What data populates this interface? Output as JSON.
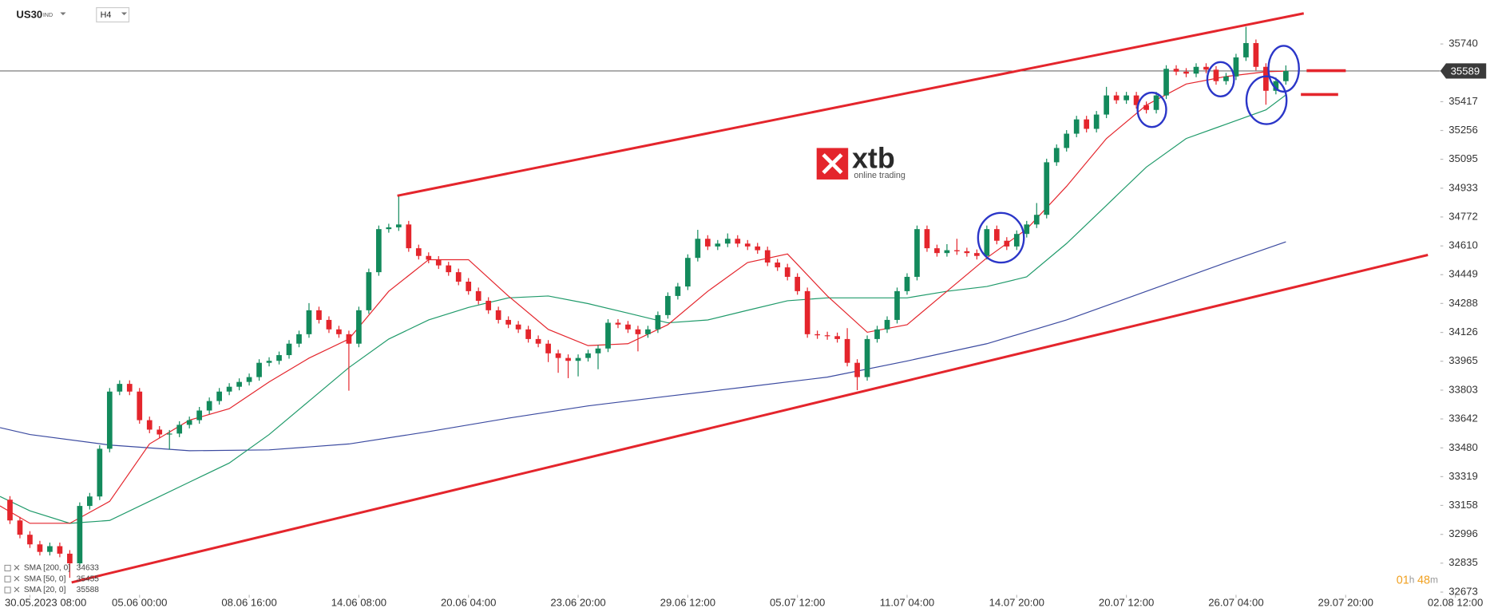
{
  "ticker": "US30",
  "ticker_tag": "IND",
  "timeframe": "H4",
  "logo": {
    "brand": "xtb",
    "tagline": "online trading"
  },
  "timer": [
    "01",
    "h",
    "48",
    "m"
  ],
  "chart_data": {
    "type": "candlestick",
    "up_color": "#138a5c",
    "down_color": "#e4252c",
    "xlim": [
      -3,
      146
    ],
    "ylim": [
      32567,
      35986
    ],
    "xticks": [
      {
        "value": 0,
        "label": "30.05.2023  08:00"
      },
      {
        "value": 11,
        "label": "05.06 00:00"
      },
      {
        "value": 22,
        "label": "08.06 16:00"
      },
      {
        "value": 33,
        "label": "14.06 08:00"
      },
      {
        "value": 44,
        "label": "20.06 04:00"
      },
      {
        "value": 55,
        "label": "23.06 20:00"
      },
      {
        "value": 66,
        "label": "29.06 12:00"
      },
      {
        "value": 77,
        "label": "05.07 12:00"
      },
      {
        "value": 88,
        "label": "11.07 04:00"
      },
      {
        "value": 99,
        "label": "14.07 20:00"
      },
      {
        "value": 110,
        "label": "20.07 12:00"
      },
      {
        "value": 121,
        "label": "26.07 04:00"
      },
      {
        "value": 132,
        "label": "29.07 20:00"
      },
      {
        "value": 143,
        "label": "02.08 12:00"
      }
    ],
    "yticks": [
      35740,
      35417,
      35256,
      35095,
      34933,
      34772,
      34610,
      34449,
      34288,
      34126,
      33965,
      33803,
      33642,
      33480,
      33319,
      33158,
      32996,
      32835,
      32673
    ],
    "current_price": 35589,
    "x": [
      -2,
      -1,
      0,
      1,
      2,
      3,
      4,
      5,
      6,
      7,
      8,
      9,
      10,
      11,
      12,
      13,
      14,
      15,
      16,
      17,
      18,
      19,
      20,
      21,
      22,
      23,
      24,
      25,
      26,
      27,
      28,
      29,
      30,
      31,
      32,
      33,
      34,
      35,
      36,
      37,
      38,
      39,
      40,
      41,
      42,
      43,
      44,
      45,
      46,
      47,
      48,
      49,
      50,
      51,
      52,
      53,
      54,
      55,
      56,
      57,
      58,
      59,
      60,
      61,
      62,
      63,
      64,
      65,
      66,
      67,
      68,
      69,
      70,
      71,
      72,
      73,
      74,
      75,
      76,
      77,
      78,
      79,
      80,
      81,
      82,
      83,
      84,
      85,
      86,
      87,
      88,
      89,
      90,
      91,
      92,
      93,
      94,
      95,
      96,
      97,
      98,
      99,
      100,
      101,
      102,
      103,
      104,
      105,
      106,
      107,
      108,
      109,
      110,
      111,
      112,
      113,
      114,
      115,
      116,
      117,
      118,
      119,
      120,
      121,
      122,
      123,
      124,
      125,
      126
    ],
    "open": [
      33190,
      33074,
      32994,
      32940,
      32898,
      32930,
      32888,
      32834,
      33155,
      33208,
      33475,
      33795,
      33838,
      33795,
      33635,
      33582,
      33555,
      33560,
      33609,
      33635,
      33689,
      33742,
      33795,
      33822,
      33849,
      33876,
      33956,
      33967,
      33999,
      34063,
      34116,
      34250,
      34196,
      34143,
      34116,
      34063,
      34250,
      34463,
      34704,
      34714,
      34730,
      34597,
      34554,
      34533,
      34501,
      34463,
      34410,
      34357,
      34303,
      34250,
      34196,
      34170,
      34143,
      34089,
      34063,
      34009,
      33983,
      33967,
      33983,
      34009,
      34036,
      34180,
      34170,
      34143,
      34116,
      34143,
      34223,
      34330,
      34383,
      34543,
      34650,
      34607,
      34623,
      34650,
      34623,
      34607,
      34586,
      34517,
      34490,
      34437,
      34357,
      34116,
      34110,
      34105,
      34089,
      33956,
      33876,
      34089,
      34143,
      34196,
      34357,
      34437,
      34704,
      34597,
      34570,
      34586,
      34580,
      34570,
      34554,
      34704,
      34639,
      34607,
      34677,
      34730,
      34784,
      35078,
      35158,
      35238,
      35318,
      35265,
      35345,
      35452,
      35425,
      35452,
      35398,
      35371,
      35452,
      35601,
      35585,
      35574,
      35612,
      35596,
      35532,
      35558,
      35665,
      35745,
      35612,
      35478,
      35532
    ],
    "high": [
      33210,
      33094,
      33014,
      32960,
      32950,
      32950,
      32908,
      33175,
      33228,
      33495,
      33815,
      33858,
      33858,
      33815,
      33655,
      33602,
      33580,
      33629,
      33655,
      33709,
      33762,
      33815,
      33842,
      33869,
      33896,
      33976,
      33987,
      34019,
      34083,
      34136,
      34290,
      34270,
      34216,
      34163,
      34136,
      34270,
      34483,
      34724,
      34734,
      34891,
      34750,
      34617,
      34574,
      34553,
      34521,
      34483,
      34430,
      34377,
      34323,
      34270,
      34216,
      34190,
      34163,
      34109,
      34083,
      34029,
      34003,
      34003,
      34029,
      34056,
      34200,
      34200,
      34190,
      34163,
      34163,
      34243,
      34350,
      34403,
      34563,
      34700,
      34670,
      34643,
      34680,
      34670,
      34643,
      34627,
      34606,
      34537,
      34510,
      34457,
      34377,
      34136,
      34130,
      34125,
      34150,
      33976,
      34109,
      34163,
      34216,
      34377,
      34457,
      34724,
      34724,
      34617,
      34620,
      34650,
      34600,
      34590,
      34724,
      34724,
      34659,
      34697,
      34750,
      34850,
      35098,
      35178,
      35258,
      35338,
      35338,
      35365,
      35500,
      35472,
      35472,
      35472,
      35418,
      35472,
      35621,
      35621,
      35605,
      35632,
      35632,
      35616,
      35578,
      35685,
      35836,
      35765,
      35632,
      35552,
      35620
    ],
    "low": [
      33054,
      32974,
      32920,
      32878,
      32878,
      32868,
      32753,
      32814,
      33135,
      33188,
      33455,
      33775,
      33775,
      33615,
      33562,
      33535,
      33470,
      33540,
      33589,
      33615,
      33669,
      33722,
      33775,
      33802,
      33829,
      33856,
      33936,
      33947,
      33979,
      34043,
      34096,
      34176,
      34123,
      34096,
      33800,
      34043,
      34230,
      34443,
      34684,
      34694,
      34577,
      34534,
      34513,
      34481,
      34443,
      34390,
      34337,
      34283,
      34230,
      34176,
      34150,
      34123,
      34069,
      34043,
      33960,
      33900,
      33870,
      33880,
      33963,
      33920,
      34016,
      34150,
      34123,
      34020,
      34096,
      34123,
      34203,
      34310,
      34363,
      34523,
      34587,
      34587,
      34603,
      34603,
      34587,
      34566,
      34497,
      34470,
      34417,
      34337,
      34096,
      34090,
      34085,
      34069,
      33936,
      33803,
      33856,
      34069,
      34123,
      34176,
      34337,
      34417,
      34577,
      34550,
      34550,
      34560,
      34550,
      34534,
      34534,
      34619,
      34587,
      34587,
      34657,
      34710,
      34764,
      35058,
      35138,
      35218,
      35245,
      35245,
      35325,
      35405,
      35405,
      35378,
      35351,
      35351,
      35432,
      35565,
      35554,
      35554,
      35576,
      35512,
      35512,
      35538,
      35645,
      35592,
      35400,
      35458,
      35512
    ],
    "close": [
      33074,
      32994,
      32940,
      32898,
      32930,
      32888,
      32834,
      33155,
      33208,
      33475,
      33795,
      33838,
      33795,
      33635,
      33582,
      33555,
      33560,
      33609,
      33635,
      33689,
      33742,
      33795,
      33822,
      33849,
      33876,
      33956,
      33967,
      33999,
      34063,
      34116,
      34250,
      34196,
      34143,
      34116,
      34063,
      34250,
      34463,
      34704,
      34714,
      34730,
      34597,
      34554,
      34533,
      34501,
      34463,
      34410,
      34357,
      34303,
      34250,
      34196,
      34170,
      34143,
      34089,
      34063,
      34009,
      33983,
      33967,
      33983,
      34009,
      34036,
      34180,
      34170,
      34143,
      34116,
      34143,
      34223,
      34330,
      34383,
      34543,
      34650,
      34607,
      34623,
      34650,
      34623,
      34607,
      34586,
      34517,
      34490,
      34437,
      34357,
      34116,
      34110,
      34105,
      34089,
      33956,
      33876,
      34089,
      34143,
      34196,
      34357,
      34437,
      34704,
      34597,
      34570,
      34586,
      34580,
      34570,
      34554,
      34704,
      34639,
      34607,
      34677,
      34730,
      34784,
      35078,
      35158,
      35238,
      35318,
      35265,
      35345,
      35452,
      35425,
      35452,
      35398,
      35371,
      35452,
      35601,
      35585,
      35574,
      35612,
      35596,
      35532,
      35558,
      35665,
      35745,
      35612,
      35478,
      35532,
      35589
    ],
    "overlays": [
      {
        "name": "SMA [200, 0]",
        "color": "#3b4aa0",
        "x": [
          -3,
          0,
          8,
          16,
          24,
          32,
          40,
          48,
          56,
          64,
          72,
          80,
          88,
          96,
          104,
          112,
          120,
          126
        ],
        "values": [
          33593,
          33555,
          33496,
          33464,
          33469,
          33502,
          33571,
          33646,
          33715,
          33769,
          33822,
          33876,
          33966,
          34063,
          34196,
          34356,
          34517,
          34633
        ]
      },
      {
        "name": "SMA [50, 0]",
        "color": "#1f9a6a",
        "x": [
          -3,
          0,
          4,
          8,
          12,
          16,
          20,
          24,
          28,
          32,
          36,
          40,
          44,
          48,
          52,
          56,
          60,
          64,
          68,
          72,
          76,
          80,
          84,
          88,
          92,
          96,
          100,
          104,
          108,
          112,
          116,
          120,
          124,
          126
        ],
        "values": [
          33208,
          33128,
          33058,
          33074,
          33181,
          33288,
          33395,
          33555,
          33742,
          33929,
          34089,
          34196,
          34266,
          34319,
          34330,
          34287,
          34234,
          34180,
          34196,
          34250,
          34303,
          34319,
          34319,
          34319,
          34356,
          34383,
          34437,
          34624,
          34837,
          35051,
          35211,
          35291,
          35371,
          35455
        ]
      },
      {
        "name": "SMA [20, 0]",
        "color": "#e4252c",
        "x": [
          -3,
          0,
          4,
          8,
          12,
          16,
          20,
          24,
          28,
          32,
          36,
          40,
          44,
          48,
          52,
          56,
          60,
          64,
          68,
          72,
          76,
          80,
          84,
          88,
          92,
          96,
          100,
          104,
          108,
          112,
          116,
          120,
          124,
          126
        ],
        "values": [
          33155,
          33058,
          33058,
          33181,
          33502,
          33635,
          33699,
          33849,
          33982,
          34089,
          34356,
          34533,
          34533,
          34330,
          34143,
          34052,
          34063,
          34169,
          34356,
          34517,
          34565,
          34330,
          34127,
          34169,
          34356,
          34543,
          34704,
          34944,
          35211,
          35398,
          35516,
          35558,
          35585,
          35588
        ]
      }
    ]
  }
}
